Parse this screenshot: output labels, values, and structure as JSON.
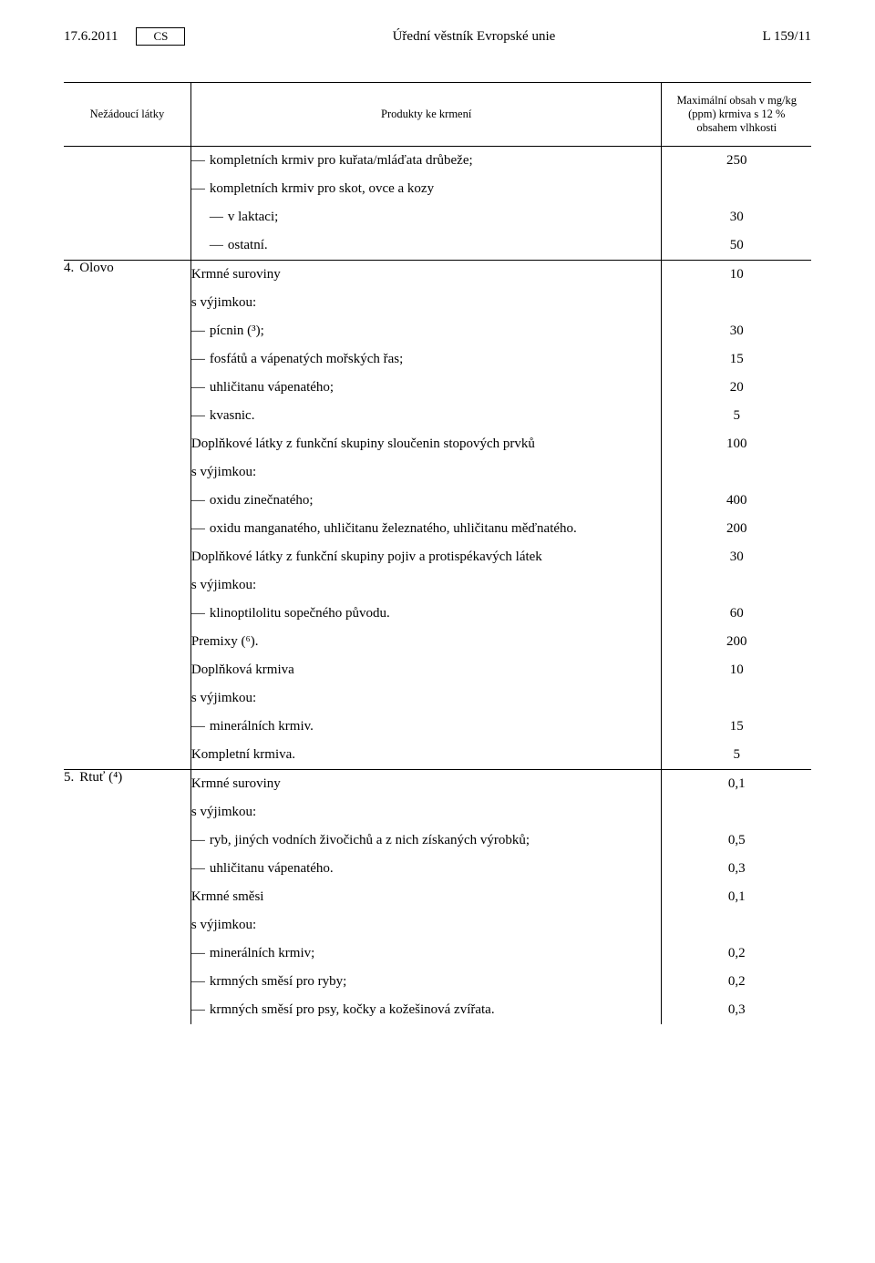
{
  "header": {
    "date": "17.6.2011",
    "lang": "CS",
    "center": "Úřední věstník Evropské unie",
    "right": "L 159/11"
  },
  "table": {
    "headers": {
      "col1": "Nežádoucí látky",
      "col2": "Produkty ke krmení",
      "col3": "Maximální obsah v mg/kg (ppm) krmiva s 12 % obsahem vlhkosti"
    }
  },
  "sections": [
    {
      "num": "4.",
      "name": "Olovo"
    },
    {
      "num": "5.",
      "name": "Rtuť (⁴)"
    }
  ],
  "rows": {
    "r1": {
      "txt": "kompletních krmiv pro kuřata/mláďata drůbeže;",
      "val": "250"
    },
    "r2": {
      "txt": "kompletních krmiv pro skot, ovce a kozy",
      "val": ""
    },
    "r3": {
      "txt": "v laktaci;",
      "val": "30"
    },
    "r4": {
      "txt": "ostatní.",
      "val": "50"
    },
    "r5": {
      "txt": "Krmné suroviny",
      "val": "10"
    },
    "r6": {
      "txt": "s výjimkou:",
      "val": ""
    },
    "r7": {
      "txt": "pícnin (³);",
      "val": "30"
    },
    "r8": {
      "txt": "fosfátů a vápenatých mořských řas;",
      "val": "15"
    },
    "r9": {
      "txt": "uhličitanu vápenatého;",
      "val": "20"
    },
    "r10": {
      "txt": "kvasnic.",
      "val": "5"
    },
    "r11": {
      "txt": "Doplňkové látky z funkční skupiny sloučenin stopových prvků",
      "val": "100"
    },
    "r12": {
      "txt": "s výjimkou:",
      "val": ""
    },
    "r13": {
      "txt": "oxidu zinečnatého;",
      "val": "400"
    },
    "r14": {
      "txt": "oxidu manganatého, uhličitanu železnatého, uhličitanu měďnatého.",
      "val": "200"
    },
    "r15": {
      "txt": "Doplňkové látky z funkční skupiny pojiv a protispékavých látek",
      "val": "30"
    },
    "r16": {
      "txt": "s výjimkou:",
      "val": ""
    },
    "r17": {
      "txt": "klinoptilolitu sopečného původu.",
      "val": "60"
    },
    "r18": {
      "txt": "Premixy (⁶).",
      "val": "200"
    },
    "r19": {
      "txt": "Doplňková krmiva",
      "val": "10"
    },
    "r20": {
      "txt": "s výjimkou:",
      "val": ""
    },
    "r21": {
      "txt": "minerálních krmiv.",
      "val": "15"
    },
    "r22": {
      "txt": "Kompletní krmiva.",
      "val": "5"
    },
    "r23": {
      "txt": "Krmné suroviny",
      "val": "0,1"
    },
    "r24": {
      "txt": "s výjimkou:",
      "val": ""
    },
    "r25": {
      "txt": "ryb, jiných vodních živočichů a z nich získaných výrobků;",
      "val": "0,5"
    },
    "r26": {
      "txt": "uhličitanu vápenatého.",
      "val": "0,3"
    },
    "r27": {
      "txt": "Krmné směsi",
      "val": "0,1"
    },
    "r28": {
      "txt": "s výjimkou:",
      "val": ""
    },
    "r29": {
      "txt": "minerálních krmiv;",
      "val": "0,2"
    },
    "r30": {
      "txt": "krmných směsí pro ryby;",
      "val": "0,2"
    },
    "r31": {
      "txt": "krmných směsí pro psy, kočky a kožešinová zvířata.",
      "val": "0,3"
    }
  }
}
